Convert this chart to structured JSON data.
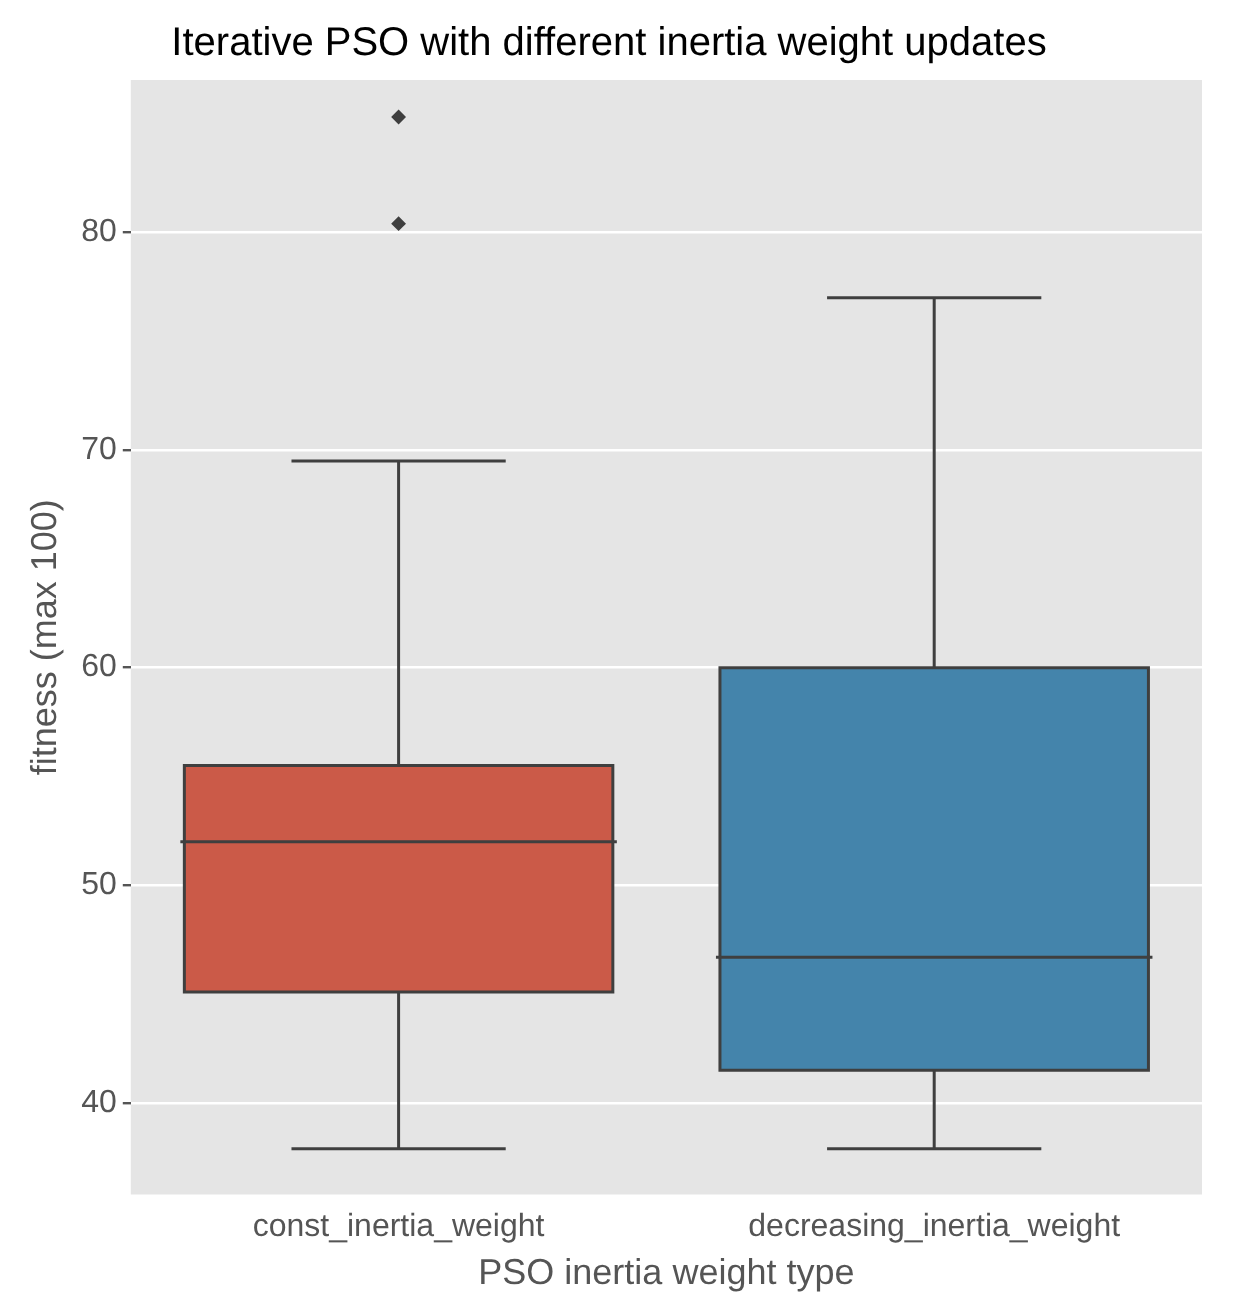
{
  "chart_data": {
    "type": "box",
    "title": "Iterative PSO with different inertia weight updates",
    "xlabel": "PSO inertia weight type",
    "ylabel": "fitness (max 100)",
    "categories": [
      "const_inertia_weight",
      "decreasing_inertia_weight"
    ],
    "colors": [
      "#cb5a48",
      "#4484ab"
    ],
    "boxes": [
      {
        "low": 37.9,
        "q1": 45.1,
        "median": 52.0,
        "q3": 55.5,
        "high": 69.5,
        "outliers": [
          80.4,
          85.3
        ]
      },
      {
        "low": 37.9,
        "q1": 41.5,
        "median": 46.7,
        "q3": 60.0,
        "high": 77.0
      }
    ],
    "ylim": [
      35.8,
      87.0
    ],
    "yticks": [
      40,
      50,
      60,
      70,
      80
    ],
    "grid": "y",
    "legend": false,
    "marker": "diamond"
  }
}
